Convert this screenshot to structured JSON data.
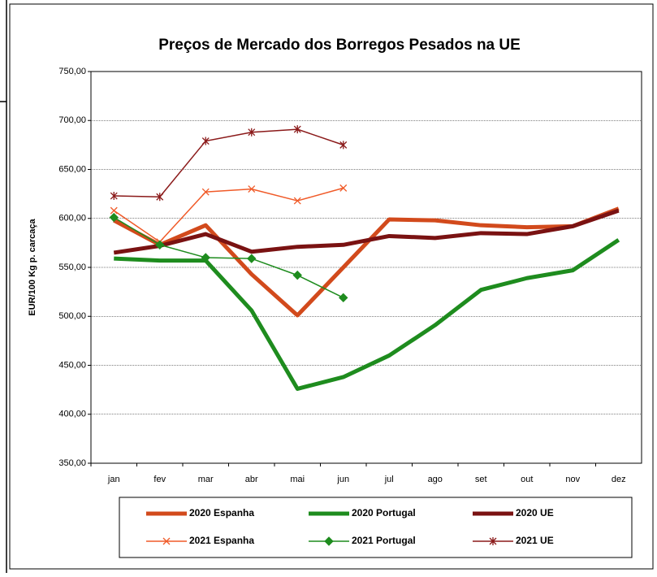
{
  "chart_data": {
    "type": "line",
    "title": "Preços de Mercado dos Borregos Pesados na UE",
    "y_label": "EUR/100 Kg p. carcaça",
    "categories": [
      "jan",
      "fev",
      "mar",
      "abr",
      "mai",
      "jun",
      "jul",
      "ago",
      "set",
      "out",
      "nov",
      "dez"
    ],
    "ylim": [
      350,
      750
    ],
    "yticks": [
      {
        "value": 350,
        "label": "350,00"
      },
      {
        "value": 400,
        "label": "400,00"
      },
      {
        "value": 450,
        "label": "450,00"
      },
      {
        "value": 500,
        "label": "500,00"
      },
      {
        "value": 550,
        "label": "550,00"
      },
      {
        "value": 600,
        "label": "600,00"
      },
      {
        "value": 650,
        "label": "650,00"
      },
      {
        "value": 700,
        "label": "700,00"
      },
      {
        "value": 750,
        "label": "750,00"
      }
    ],
    "grid": true,
    "legend": "bottom",
    "series": [
      {
        "name": "2020 Espanha",
        "color": "#d24a1c",
        "width": 5,
        "marker": "none",
        "values": [
          598,
          573,
          593,
          543,
          501,
          550,
          599,
          598,
          593,
          591,
          592,
          610
        ]
      },
      {
        "name": "2020 Portugal",
        "color": "#1e8c1e",
        "width": 5,
        "marker": "none",
        "values": [
          559,
          557,
          557,
          506,
          426,
          438,
          460,
          491,
          527,
          539,
          547,
          578
        ]
      },
      {
        "name": "2020 UE",
        "color": "#7a1212",
        "width": 5,
        "marker": "none",
        "values": [
          565,
          572,
          584,
          566,
          571,
          573,
          582,
          580,
          585,
          584,
          592,
          608
        ]
      },
      {
        "name": "2021 Espanha",
        "color": "#f05a28",
        "width": 1.5,
        "marker": "x",
        "values": [
          608,
          576,
          627,
          630,
          618,
          631,
          null,
          null,
          null,
          null,
          null,
          null
        ]
      },
      {
        "name": "2021 Portugal",
        "color": "#1e8c1e",
        "width": 1.5,
        "marker": "diamond",
        "values": [
          601,
          573,
          560,
          559,
          542,
          519,
          null,
          null,
          null,
          null,
          null,
          null
        ]
      },
      {
        "name": "2021 UE",
        "color": "#8b1a1a",
        "width": 1.5,
        "marker": "star",
        "values": [
          623,
          622,
          679,
          688,
          691,
          675,
          null,
          null,
          null,
          null,
          null,
          null
        ]
      }
    ]
  }
}
